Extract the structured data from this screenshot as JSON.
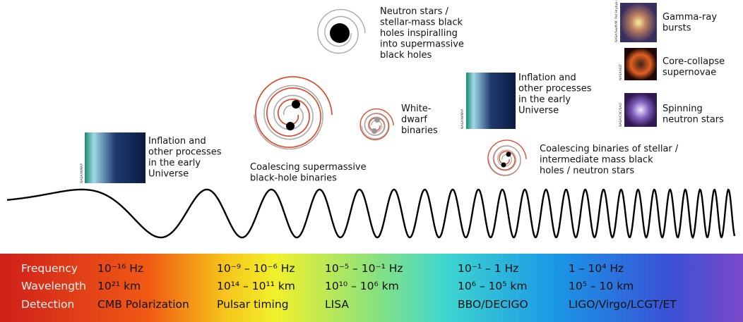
{
  "sources": [
    {
      "lines": [
        "Inflation and",
        "other processes",
        "in the early",
        "Universe"
      ],
      "credit": "NASA/WMAP"
    },
    {
      "lines": [
        "Coalescing supermassive",
        "black-hole binaries"
      ]
    },
    {
      "lines": [
        "Neutron stars /",
        "stellar-mass black",
        "holes inspiralling",
        "into supermassive",
        "black holes"
      ]
    },
    {
      "lines": [
        "White-",
        "dwarf",
        "binaries"
      ]
    },
    {
      "lines": [
        "Inflation and",
        "other processes",
        "in the early",
        "Universe"
      ],
      "credit": "NASA/WMAP"
    },
    {
      "lines": [
        "Coalescing binaries of stellar /",
        "intermediate mass black",
        "holes / neutron stars"
      ]
    },
    {
      "lines": [
        "Gamma-ray",
        "bursts"
      ],
      "credit": "NASA/Swift/M. Pat Hrybyk-Keith/J. Jones"
    },
    {
      "lines": [
        "Core-collapse",
        "supernovae"
      ],
      "credit": "NASA/HST"
    },
    {
      "lines": [
        "Spinning",
        "neutron stars"
      ],
      "credit": "NASA/CXC/SAO"
    }
  ],
  "band": {
    "row_labels": [
      "Frequency",
      "Wavelength",
      "Detection"
    ],
    "columns": [
      {
        "frequency": "10⁻¹⁶ Hz",
        "wavelength": "10²¹ km",
        "detection": "CMB Polarization"
      },
      {
        "frequency": "10⁻⁹ – 10⁻⁶ Hz",
        "wavelength": "10¹⁴ – 10¹¹ km",
        "detection": "Pulsar timing"
      },
      {
        "frequency": "10⁻⁵ – 10⁻¹ Hz",
        "wavelength": "10¹⁰ – 10⁶ km",
        "detection": "LISA"
      },
      {
        "frequency": "10⁻¹ – 1 Hz",
        "wavelength": "10⁶ – 10⁵ km",
        "detection": "BBO/DECIGO"
      },
      {
        "frequency": "1 – 10⁴ Hz",
        "wavelength": "10⁵ – 10 km",
        "detection": "LIGO/Virgo/LCGT/ET"
      }
    ]
  }
}
